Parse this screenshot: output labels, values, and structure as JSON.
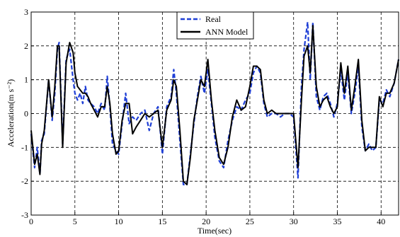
{
  "chart_data": {
    "type": "line",
    "xlabel": "Time(sec)",
    "ylabel": "Acceleration(m s⁻²)",
    "xlim": [
      0,
      42
    ],
    "ylim": [
      -3,
      3
    ],
    "xticks": [
      0,
      5,
      10,
      15,
      20,
      25,
      30,
      35,
      40
    ],
    "yticks": [
      -3,
      -2,
      -1,
      0,
      1,
      2,
      3
    ],
    "grid": true,
    "legend_position": "top-center",
    "series": [
      {
        "name": "Real",
        "color": "#1f3fd6",
        "style": "dashed",
        "x": [
          0,
          0.4,
          0.7,
          1.0,
          1.2,
          1.5,
          2.0,
          2.4,
          2.7,
          3.0,
          3.2,
          3.6,
          4.0,
          4.4,
          4.8,
          5.0,
          5.3,
          5.6,
          5.9,
          6.2,
          6.5,
          6.8,
          7.2,
          7.6,
          8.0,
          8.4,
          8.7,
          9.0,
          9.3,
          9.7,
          10.0,
          10.4,
          10.8,
          11.2,
          11.6,
          12.0,
          12.5,
          13.0,
          13.5,
          14.0,
          14.5,
          15.0,
          15.5,
          16.0,
          16.3,
          16.6,
          17.0,
          17.4,
          17.8,
          18.2,
          18.6,
          19.0,
          19.4,
          19.8,
          20.2,
          20.6,
          21.0,
          21.5,
          22.0,
          22.5,
          23.0,
          23.5,
          24.0,
          24.5,
          25.0,
          25.4,
          25.8,
          26.2,
          26.6,
          27.0,
          27.5,
          28.0,
          28.5,
          29.0,
          29.5,
          30.0,
          30.5,
          30.9,
          31.2,
          31.6,
          31.9,
          32.2,
          32.6,
          33.0,
          33.4,
          33.8,
          34.2,
          34.6,
          35.0,
          35.4,
          35.8,
          36.2,
          36.6,
          37.0,
          37.4,
          37.8,
          38.2,
          38.6,
          39.0,
          39.4,
          39.8,
          40.2,
          40.6,
          41.0,
          41.5,
          42.0
        ],
        "y": [
          -0.6,
          -1.6,
          -1.0,
          -1.8,
          -0.8,
          -0.6,
          1.0,
          -0.2,
          0.6,
          1.9,
          2.1,
          -0.9,
          1.6,
          1.9,
          1.0,
          0.6,
          0.4,
          0.6,
          0.3,
          0.8,
          0.4,
          0.3,
          0.2,
          0.0,
          0.3,
          0.1,
          1.1,
          0.2,
          -0.9,
          -1.1,
          -1.2,
          -0.3,
          0.6,
          -0.3,
          -0.1,
          -0.2,
          0.0,
          0.1,
          -0.5,
          0.0,
          0.2,
          -1.2,
          0.2,
          0.5,
          1.3,
          0.6,
          -0.8,
          -2.1,
          -2.1,
          -1.2,
          -0.3,
          0.5,
          1.1,
          0.6,
          1.3,
          0.3,
          -0.7,
          -1.4,
          -1.6,
          -0.8,
          -0.2,
          0.2,
          0.1,
          0.4,
          0.6,
          1.2,
          1.4,
          1.2,
          0.3,
          -0.1,
          0.0,
          0.0,
          -0.1,
          0.0,
          0.0,
          -0.1,
          -1.9,
          0.8,
          1.9,
          2.7,
          1.0,
          2.7,
          0.5,
          0.1,
          0.5,
          0.6,
          0.3,
          -0.1,
          0.3,
          1.3,
          0.4,
          1.2,
          0.0,
          0.6,
          1.4,
          -0.4,
          -1.1,
          -0.9,
          -1.1,
          -1.0,
          0.4,
          0.3,
          0.7,
          0.5,
          0.9,
          1.6
        ]
      },
      {
        "name": "ANN Model",
        "color": "#000000",
        "style": "solid",
        "x": [
          0,
          0.4,
          0.7,
          1.0,
          1.2,
          1.5,
          2.0,
          2.4,
          2.7,
          3.0,
          3.2,
          3.6,
          4.0,
          4.4,
          4.8,
          5.0,
          5.3,
          5.6,
          5.9,
          6.2,
          6.5,
          6.8,
          7.2,
          7.6,
          8.0,
          8.4,
          8.7,
          9.0,
          9.3,
          9.7,
          10.0,
          10.4,
          10.8,
          11.2,
          11.6,
          12.0,
          12.5,
          13.0,
          13.5,
          14.0,
          14.5,
          15.0,
          15.5,
          16.0,
          16.3,
          16.6,
          17.0,
          17.4,
          17.8,
          18.2,
          18.6,
          19.0,
          19.4,
          19.8,
          20.2,
          20.6,
          21.0,
          21.5,
          22.0,
          22.5,
          23.0,
          23.5,
          24.0,
          24.5,
          25.0,
          25.4,
          25.8,
          26.2,
          26.6,
          27.0,
          27.5,
          28.0,
          28.5,
          29.0,
          29.5,
          30.0,
          30.5,
          30.9,
          31.2,
          31.6,
          31.9,
          32.2,
          32.6,
          33.0,
          33.4,
          33.8,
          34.2,
          34.6,
          35.0,
          35.4,
          35.8,
          36.2,
          36.6,
          37.0,
          37.4,
          37.8,
          38.2,
          38.6,
          39.0,
          39.4,
          39.8,
          40.2,
          40.6,
          41.0,
          41.5,
          42.0
        ],
        "y": [
          -0.5,
          -1.5,
          -1.2,
          -1.8,
          -0.9,
          -0.5,
          1.0,
          -0.1,
          0.8,
          2.0,
          2.0,
          -1.0,
          1.5,
          2.1,
          1.8,
          1.2,
          0.8,
          0.7,
          0.6,
          0.6,
          0.5,
          0.3,
          0.1,
          -0.1,
          0.2,
          0.2,
          0.8,
          0.3,
          -0.6,
          -1.2,
          -1.1,
          -0.2,
          0.3,
          0.3,
          -0.6,
          -0.4,
          -0.2,
          0.0,
          -0.1,
          0.0,
          0.1,
          -1.0,
          0.1,
          0.4,
          1.0,
          0.8,
          -0.5,
          -2.0,
          -2.1,
          -1.3,
          -0.2,
          0.4,
          1.0,
          0.8,
          1.6,
          0.4,
          -0.5,
          -1.3,
          -1.5,
          -1.0,
          -0.1,
          0.4,
          0.1,
          0.2,
          0.8,
          1.4,
          1.4,
          1.3,
          0.4,
          0.0,
          0.1,
          0.0,
          0.0,
          0.0,
          0.0,
          0.0,
          -1.6,
          0.4,
          1.7,
          2.0,
          1.2,
          2.6,
          0.8,
          0.2,
          0.4,
          0.5,
          0.2,
          0.0,
          0.2,
          1.5,
          0.6,
          1.4,
          0.1,
          0.8,
          1.6,
          -0.2,
          -1.1,
          -1.0,
          -1.0,
          -1.0,
          0.5,
          0.2,
          0.6,
          0.6,
          0.9,
          1.6
        ]
      }
    ]
  }
}
